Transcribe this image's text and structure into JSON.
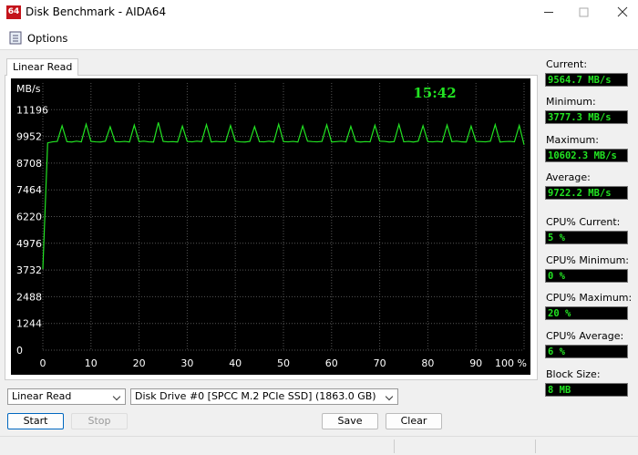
{
  "window": {
    "icon": "64",
    "title": "Disk Benchmark - AIDA64"
  },
  "menu": {
    "options": "Options"
  },
  "tab": "Linear Read",
  "chart_data": {
    "type": "line",
    "y_label": "MB/s",
    "time": "15:42",
    "x": [
      0,
      1,
      2,
      3,
      4,
      5,
      6,
      7,
      8,
      9,
      10,
      11,
      12,
      13,
      14,
      15,
      16,
      17,
      18,
      19,
      20,
      21,
      22,
      23,
      24,
      25,
      26,
      27,
      28,
      29,
      30,
      31,
      32,
      33,
      34,
      35,
      36,
      37,
      38,
      39,
      40,
      41,
      42,
      43,
      44,
      45,
      46,
      47,
      48,
      49,
      50,
      51,
      52,
      53,
      54,
      55,
      56,
      57,
      58,
      59,
      60,
      61,
      62,
      63,
      64,
      65,
      66,
      67,
      68,
      69,
      70,
      71,
      72,
      73,
      74,
      75,
      76,
      77,
      78,
      79,
      80,
      81,
      82,
      83,
      84,
      85,
      86,
      87,
      88,
      89,
      90,
      91,
      92,
      93,
      94,
      95,
      96,
      97,
      98,
      99,
      100
    ],
    "series": [
      {
        "color": "#22e322",
        "values": [
          3777,
          9650,
          9700,
          9720,
          10450,
          9710,
          9690,
          9730,
          9700,
          10520,
          9720,
          9700,
          9690,
          9730,
          10400,
          9710,
          9700,
          9720,
          9690,
          10480,
          9710,
          9730,
          9700,
          9690,
          10602,
          9720,
          9700,
          9710,
          9690,
          10430,
          9720,
          9700,
          9730,
          9710,
          10500,
          9690,
          9720,
          9700,
          9710,
          10460,
          9730,
          9700,
          9690,
          9720,
          10410,
          9710,
          9700,
          9730,
          9690,
          10520,
          9710,
          9700,
          9720,
          9690,
          10440,
          9730,
          9710,
          9700,
          9720,
          10490,
          9690,
          9710,
          9730,
          9700,
          10420,
          9720,
          9690,
          9710,
          9700,
          10470,
          9730,
          9720,
          9690,
          9710,
          10510,
          9700,
          9720,
          9690,
          9730,
          10450,
          9710,
          9700,
          9720,
          9690,
          10480,
          9710,
          9730,
          9700,
          9690,
          10430,
          9720,
          9710,
          9700,
          9730,
          10500,
          9690,
          9710,
          9720,
          9700,
          10460,
          9565
        ]
      }
    ],
    "xlim": [
      0,
      100
    ],
    "xticks": [
      0,
      10,
      20,
      30,
      40,
      50,
      60,
      70,
      80,
      90,
      {
        "value": 100,
        "label": "100 %"
      }
    ],
    "ylim": [
      0,
      12440
    ],
    "yticks": [
      0,
      1244,
      2488,
      3732,
      4976,
      6220,
      7464,
      8708,
      9952,
      11196
    ],
    "grid": true
  },
  "stats": [
    {
      "label": "Current:",
      "value": "9564.7 MB/s"
    },
    {
      "label": "Minimum:",
      "value": "3777.3 MB/s"
    },
    {
      "label": "Maximum:",
      "value": "10602.3 MB/s"
    },
    {
      "label": "Average:",
      "value": "9722.2 MB/s"
    },
    {
      "label": "CPU% Current:",
      "value": "5 %"
    },
    {
      "label": "CPU% Minimum:",
      "value": "0 %"
    },
    {
      "label": "CPU% Maximum:",
      "value": "20 %"
    },
    {
      "label": "CPU% Average:",
      "value": "6 %"
    },
    {
      "label": "Block Size:",
      "value": "8 MB"
    }
  ],
  "controls": {
    "test_select": "Linear Read",
    "drive_select": "Disk Drive #0  [SPCC M.2  PCIe SSD]  (1863.0 GB)",
    "buttons": [
      "Start",
      "Stop",
      "Save",
      "Clear"
    ]
  }
}
